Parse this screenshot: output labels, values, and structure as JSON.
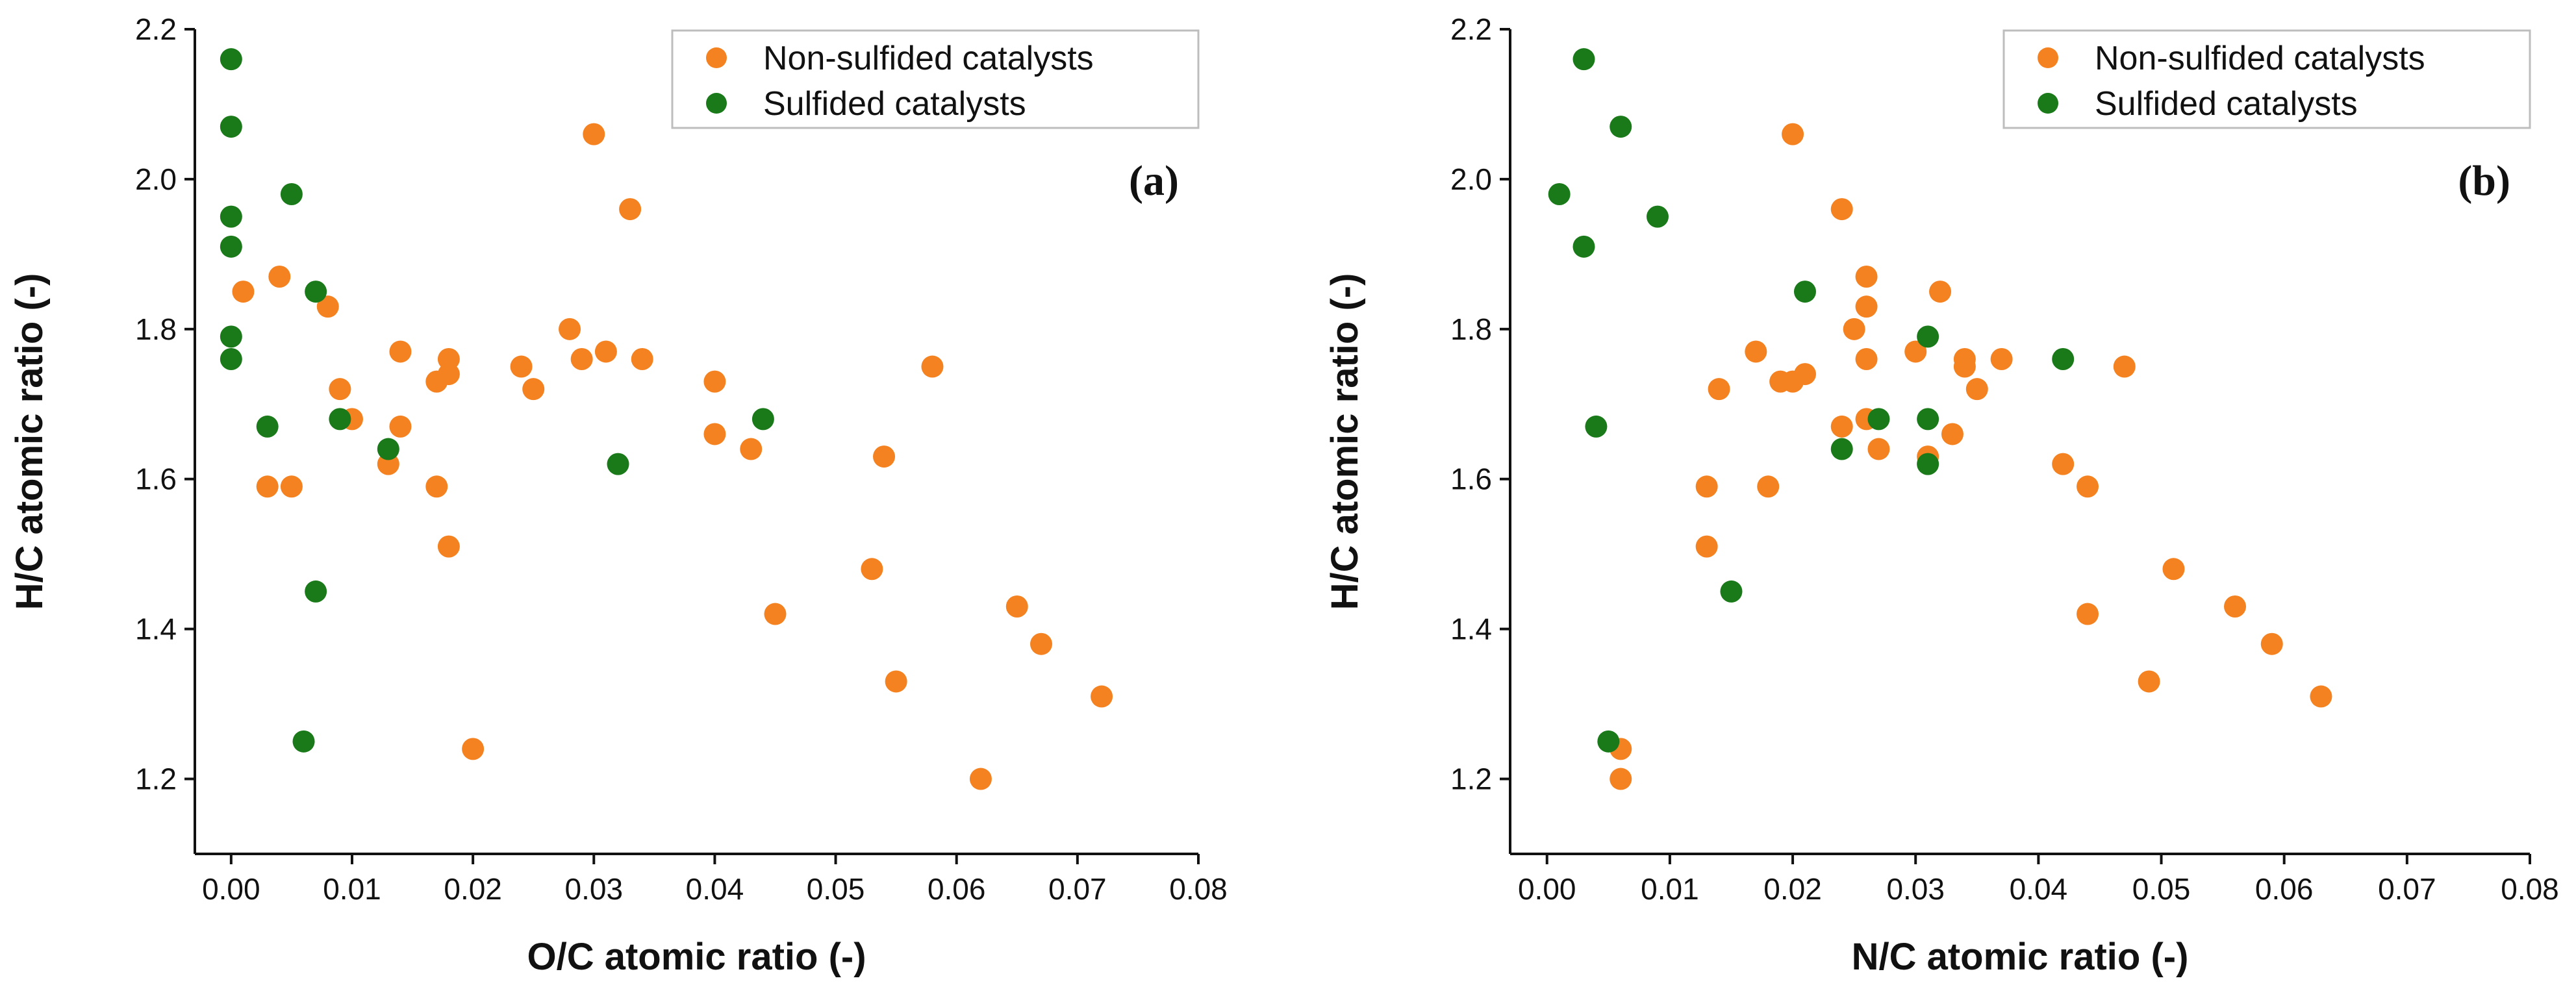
{
  "colors": {
    "non_sulfided": "#f58220",
    "sulfided": "#1a7a1a"
  },
  "chart_data": [
    {
      "type": "scatter",
      "panel_label": "(a)",
      "xlabel": "O/C atomic ratio (-)",
      "ylabel": "H/C atomic ratio (-)",
      "xlim": [
        -0.003,
        0.08
      ],
      "ylim": [
        1.1,
        2.2
      ],
      "xticks": [
        0.0,
        0.01,
        0.02,
        0.03,
        0.04,
        0.05,
        0.06,
        0.07,
        0.08
      ],
      "xtick_labels": [
        "0.00",
        "0.01",
        "0.02",
        "0.03",
        "0.04",
        "0.05",
        "0.06",
        "0.07",
        "0.08"
      ],
      "yticks": [
        1.2,
        1.4,
        1.6,
        1.8,
        2.0,
        2.2
      ],
      "ytick_labels": [
        "1.2",
        "1.4",
        "1.6",
        "1.8",
        "2.0",
        "2.2"
      ],
      "legend_position": "top-right",
      "series": [
        {
          "name": "Non-sulfided catalysts",
          "color_key": "non_sulfided",
          "points": [
            [
              0.001,
              1.85
            ],
            [
              0.004,
              1.87
            ],
            [
              0.008,
              1.83
            ],
            [
              0.003,
              1.59
            ],
            [
              0.005,
              1.59
            ],
            [
              0.009,
              1.72
            ],
            [
              0.01,
              1.68
            ],
            [
              0.013,
              1.62
            ],
            [
              0.014,
              1.67
            ],
            [
              0.014,
              1.77
            ],
            [
              0.017,
              1.73
            ],
            [
              0.018,
              1.76
            ],
            [
              0.018,
              1.74
            ],
            [
              0.017,
              1.59
            ],
            [
              0.018,
              1.51
            ],
            [
              0.02,
              1.24
            ],
            [
              0.024,
              1.75
            ],
            [
              0.025,
              1.72
            ],
            [
              0.028,
              1.8
            ],
            [
              0.029,
              1.76
            ],
            [
              0.031,
              1.77
            ],
            [
              0.03,
              2.06
            ],
            [
              0.033,
              1.96
            ],
            [
              0.034,
              1.76
            ],
            [
              0.04,
              1.73
            ],
            [
              0.04,
              1.66
            ],
            [
              0.043,
              1.64
            ],
            [
              0.045,
              1.42
            ],
            [
              0.053,
              1.48
            ],
            [
              0.054,
              1.63
            ],
            [
              0.055,
              1.33
            ],
            [
              0.058,
              1.75
            ],
            [
              0.062,
              1.2
            ],
            [
              0.065,
              1.43
            ],
            [
              0.067,
              1.38
            ],
            [
              0.072,
              1.31
            ]
          ]
        },
        {
          "name": "Sulfided catalysts",
          "color_key": "sulfided",
          "points": [
            [
              0.0,
              2.16
            ],
            [
              0.0,
              2.07
            ],
            [
              0.0,
              1.95
            ],
            [
              0.0,
              1.91
            ],
            [
              0.0,
              1.79
            ],
            [
              0.0,
              1.76
            ],
            [
              0.005,
              1.98
            ],
            [
              0.007,
              1.85
            ],
            [
              0.003,
              1.67
            ],
            [
              0.009,
              1.68
            ],
            [
              0.013,
              1.64
            ],
            [
              0.007,
              1.45
            ],
            [
              0.006,
              1.25
            ],
            [
              0.032,
              1.62
            ],
            [
              0.044,
              1.68
            ]
          ]
        }
      ]
    },
    {
      "type": "scatter",
      "panel_label": "(b)",
      "xlabel": "N/C atomic ratio (-)",
      "ylabel": "H/C atomic ratio (-)",
      "xlim": [
        -0.003,
        0.08
      ],
      "ylim": [
        1.1,
        2.2
      ],
      "xticks": [
        0.0,
        0.01,
        0.02,
        0.03,
        0.04,
        0.05,
        0.06,
        0.07,
        0.08
      ],
      "xtick_labels": [
        "0.00",
        "0.01",
        "0.02",
        "0.03",
        "0.04",
        "0.05",
        "0.06",
        "0.07",
        "0.08"
      ],
      "yticks": [
        1.2,
        1.4,
        1.6,
        1.8,
        2.0,
        2.2
      ],
      "ytick_labels": [
        "1.2",
        "1.4",
        "1.6",
        "1.8",
        "2.0",
        "2.2"
      ],
      "legend_position": "top-right",
      "series": [
        {
          "name": "Non-sulfided catalysts",
          "color_key": "non_sulfided",
          "points": [
            [
              0.006,
              1.24
            ],
            [
              0.006,
              1.2
            ],
            [
              0.013,
              1.59
            ],
            [
              0.013,
              1.51
            ],
            [
              0.014,
              1.72
            ],
            [
              0.017,
              1.77
            ],
            [
              0.018,
              1.59
            ],
            [
              0.019,
              1.73
            ],
            [
              0.02,
              1.73
            ],
            [
              0.021,
              1.74
            ],
            [
              0.02,
              2.06
            ],
            [
              0.024,
              1.96
            ],
            [
              0.024,
              1.67
            ],
            [
              0.025,
              1.8
            ],
            [
              0.026,
              1.87
            ],
            [
              0.026,
              1.83
            ],
            [
              0.026,
              1.76
            ],
            [
              0.026,
              1.68
            ],
            [
              0.027,
              1.64
            ],
            [
              0.03,
              1.77
            ],
            [
              0.031,
              1.63
            ],
            [
              0.032,
              1.85
            ],
            [
              0.033,
              1.66
            ],
            [
              0.034,
              1.76
            ],
            [
              0.034,
              1.75
            ],
            [
              0.035,
              1.72
            ],
            [
              0.037,
              1.76
            ],
            [
              0.042,
              1.62
            ],
            [
              0.044,
              1.59
            ],
            [
              0.044,
              1.42
            ],
            [
              0.047,
              1.75
            ],
            [
              0.049,
              1.33
            ],
            [
              0.051,
              1.48
            ],
            [
              0.056,
              1.43
            ],
            [
              0.059,
              1.38
            ],
            [
              0.063,
              1.31
            ]
          ]
        },
        {
          "name": "Sulfided catalysts",
          "color_key": "sulfided",
          "points": [
            [
              0.001,
              1.98
            ],
            [
              0.003,
              2.16
            ],
            [
              0.003,
              1.91
            ],
            [
              0.006,
              2.07
            ],
            [
              0.009,
              1.95
            ],
            [
              0.004,
              1.67
            ],
            [
              0.015,
              1.45
            ],
            [
              0.005,
              1.25
            ],
            [
              0.021,
              1.85
            ],
            [
              0.024,
              1.64
            ],
            [
              0.027,
              1.68
            ],
            [
              0.031,
              1.79
            ],
            [
              0.031,
              1.68
            ],
            [
              0.031,
              1.62
            ],
            [
              0.042,
              1.76
            ]
          ]
        }
      ]
    }
  ]
}
